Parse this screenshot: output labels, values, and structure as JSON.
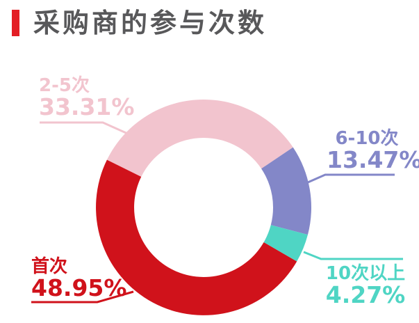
{
  "page": {
    "background_color": "#FFFFFF"
  },
  "header": {
    "title": "采购商的参与次数",
    "accent_color": "#E31E25",
    "title_color": "#58585A"
  },
  "chart_data": {
    "type": "pie",
    "variant": "donut",
    "title": "采购商的参与次数",
    "total": 100,
    "start_angle_deg": 120,
    "inner_radius_ratio": 0.645,
    "legend_position": "outside-callout-labels",
    "background": "#FFFFFF",
    "segments": [
      {
        "label": "首次",
        "value": 48.95,
        "value_text": "48.95%",
        "color": "#D0121B"
      },
      {
        "label": "2-5次",
        "value": 33.31,
        "value_text": "33.31%",
        "color": "#F2C4CE"
      },
      {
        "label": "6-10次",
        "value": 13.47,
        "value_text": "13.47%",
        "color": "#8387C8"
      },
      {
        "label": "10次以上",
        "value": 4.27,
        "value_text": "4.27%",
        "color": "#4FD5C4"
      }
    ]
  }
}
